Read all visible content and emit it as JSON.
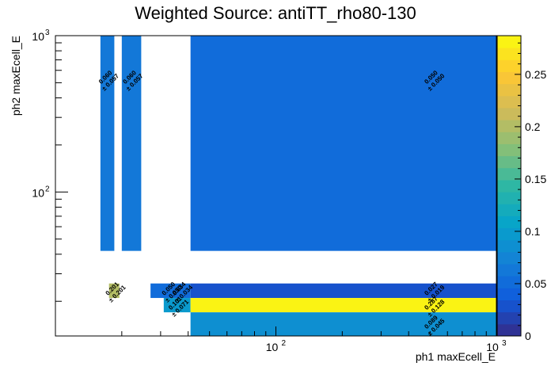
{
  "chart_data": {
    "type": "heatmap",
    "title": "Weighted Source: antiTT_rho80-130",
    "xlabel": "ph1 maxEcell_E",
    "ylabel": "ph2 maxEcell_E",
    "x_scale": "log",
    "y_scale": "log",
    "xlim": [
      10,
      1000
    ],
    "ylim": [
      12,
      1000
    ],
    "x_tick_labels": [
      {
        "value": 100,
        "base": "10",
        "exp": "2"
      },
      {
        "value": 1000,
        "base": "10",
        "exp": "3"
      }
    ],
    "y_tick_labels": [
      {
        "value": 100,
        "base": "10",
        "exp": "2"
      },
      {
        "value": 1000,
        "base": "10",
        "exp": "3"
      }
    ],
    "colorbar": {
      "min": 0,
      "max": 0.287,
      "ticks": [
        "0",
        "0.05",
        "0.1",
        "0.15",
        "0.2",
        "0.25"
      ],
      "tick_values": [
        0,
        0.05,
        0.1,
        0.15,
        0.2,
        0.25
      ],
      "palette": "kBird"
    },
    "cells": [
      {
        "x0": 16,
        "x1": 18.5,
        "y0": 42,
        "y1": 1000,
        "value": 0.06,
        "label": "0.060",
        "error": "± 0.057"
      },
      {
        "x0": 20,
        "x1": 24.5,
        "y0": 42,
        "y1": 1000,
        "value": 0.06,
        "label": "0.060",
        "error": "± 0.057"
      },
      {
        "x0": 41,
        "x1": 1000,
        "y0": 42,
        "y1": 1000,
        "value": 0.05,
        "label": "0.050",
        "error": "± 0.050"
      },
      {
        "x0": 17.5,
        "x1": 19.5,
        "y0": 21,
        "y1": 26,
        "value": 0.201,
        "label": "0.201",
        "error": "± 0.201"
      },
      {
        "x0": 27,
        "x1": 41,
        "y0": 21,
        "y1": 26,
        "value": 0.05,
        "label": "0.050",
        "error": "± 0.050"
      },
      {
        "x0": 41,
        "x1": 1000,
        "y0": 21,
        "y1": 26,
        "value": 0.034,
        "label": "0.034",
        "error": "± 0.034"
      },
      {
        "x0": 31,
        "x1": 41,
        "y0": 17,
        "y1": 21,
        "value": 0.101,
        "label": "0.101",
        "error": "± 0.071"
      },
      {
        "x0": 41,
        "x1": 1000,
        "y0": 17,
        "y1": 21,
        "value": 0.287,
        "label": "0.287",
        "error": "± 0.128"
      },
      {
        "x0": 41,
        "x1": 1000,
        "y0": 12,
        "y1": 17,
        "value": 0.089,
        "label": "0.089",
        "error": "± 0.045"
      }
    ],
    "overlay_cells": [
      {
        "x0": 41,
        "x1": 1000,
        "y0": 21,
        "y1": 26,
        "label": "0.027",
        "error": "± 0.019"
      }
    ]
  }
}
